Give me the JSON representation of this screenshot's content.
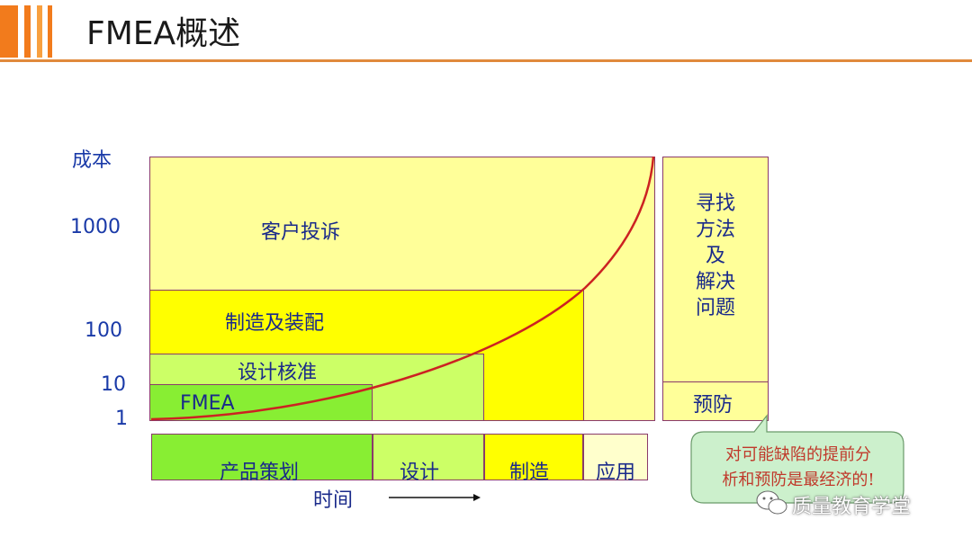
{
  "slide": {
    "title": "FMEA概述"
  },
  "diagram": {
    "y_axis_label": "成本",
    "y_ticks": [
      "1000",
      "100",
      "10",
      "1"
    ],
    "regions": {
      "customer_complaint": "客户投诉",
      "manufacturing_assembly": "制造及装配",
      "design_verification": "设计核准",
      "fmea": "FMEA"
    },
    "phases": {
      "product_planning": "产品策划",
      "design": "设计",
      "manufacturing": "制造",
      "application": "应用"
    },
    "x_axis_label": "时间",
    "side_panel": {
      "lines": [
        "寻找",
        "方法",
        "及",
        "解决",
        "问题"
      ],
      "prevention": "预防"
    },
    "callout": {
      "line1": "对可能缺陷的提前分",
      "line2": "析和预防是最经济的!"
    }
  },
  "watermark": {
    "text": "质量教育学堂",
    "icon": "wechat-icon"
  },
  "colors": {
    "light_yellow": "#ffff99",
    "yellow": "#ffff00",
    "light_green": "#ccff66",
    "green": "#88ee33",
    "curve": "#cc2222",
    "border": "#8a3a6a",
    "text_blue": "#1a2a8a",
    "title_orange": "#e08a3c",
    "callout_fill": "#ccf0cc"
  }
}
